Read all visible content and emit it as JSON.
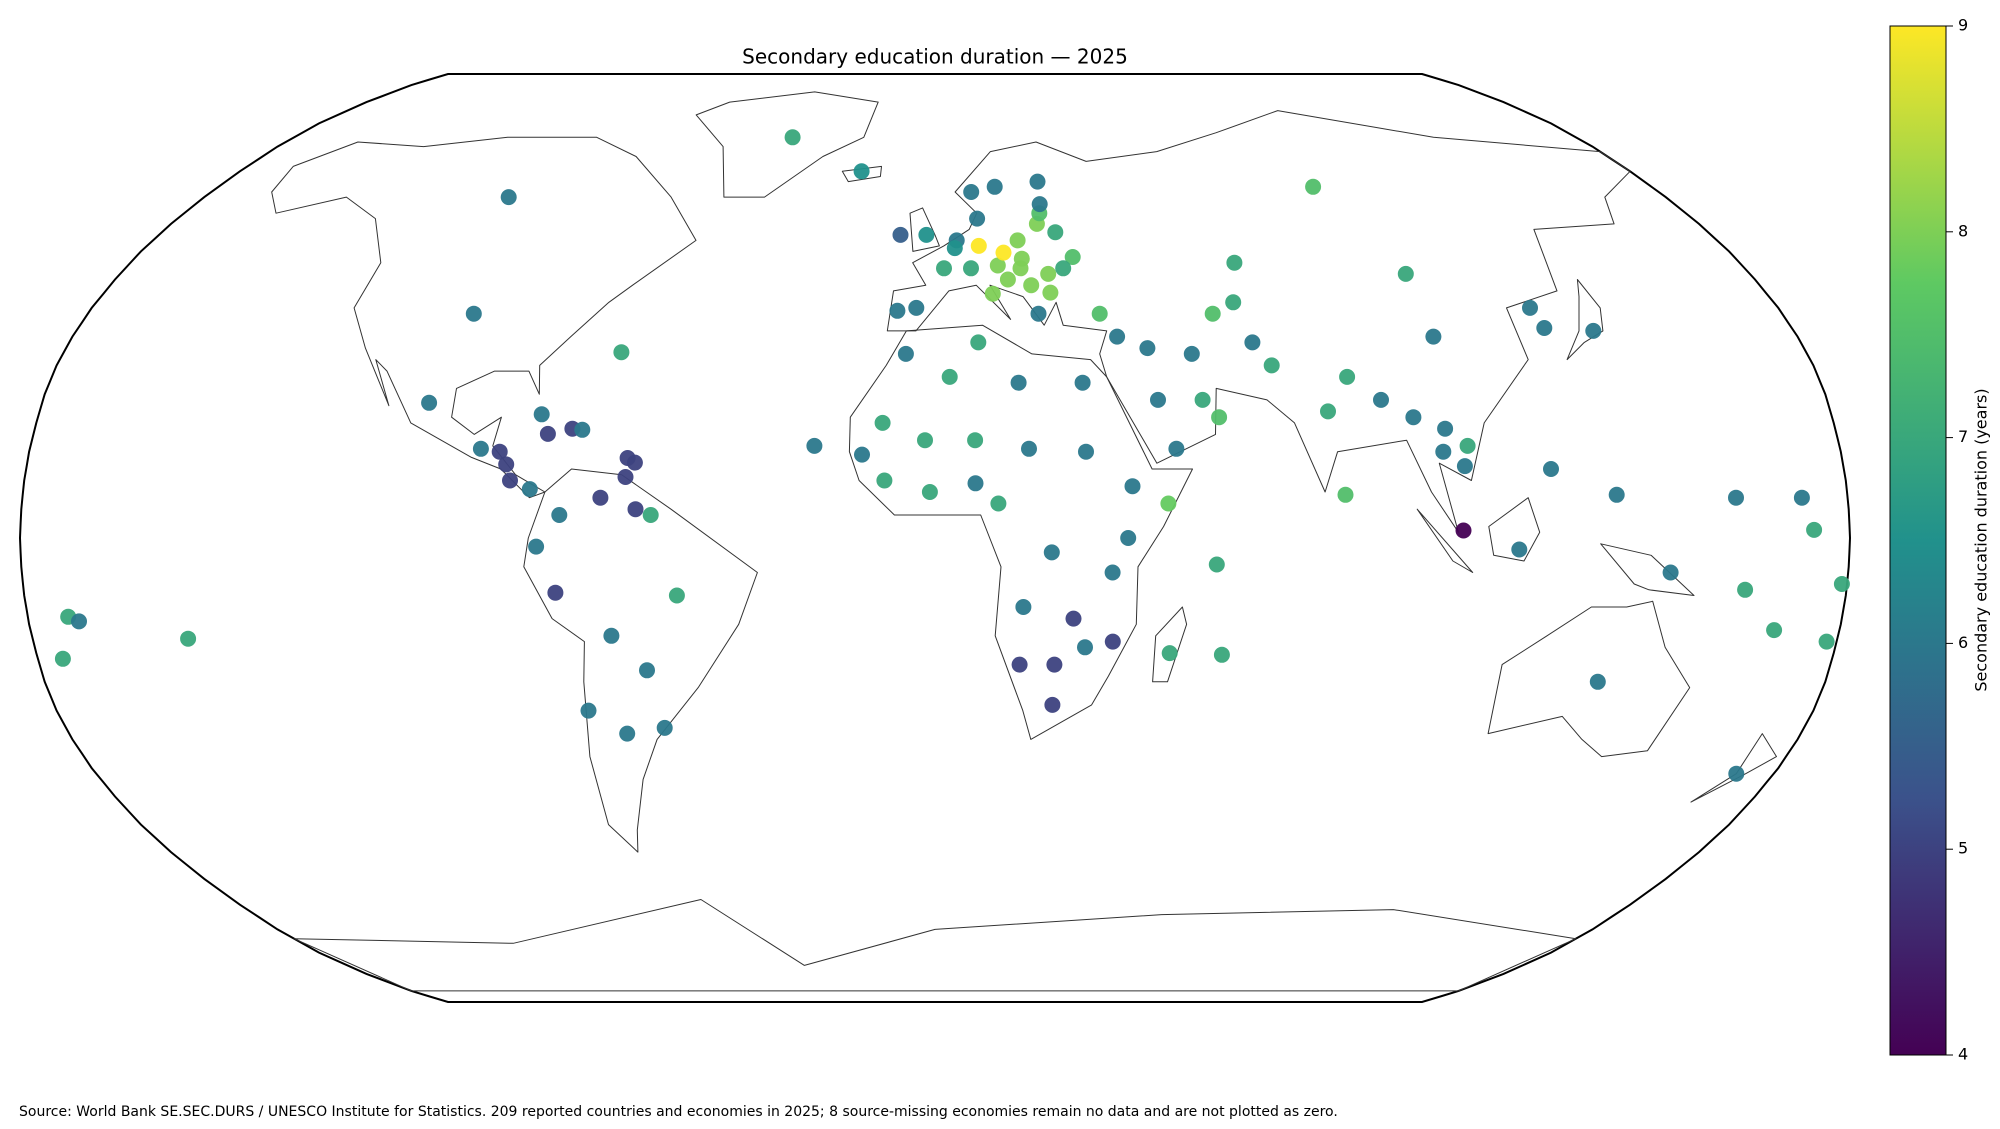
{
  "chart_data": {
    "type": "scatter",
    "projection": "robinson",
    "title": "Secondary education duration — 2025",
    "colorbar_label": "Secondary education duration (years)",
    "source": "Source: World Bank SE.SEC.DURS / UNESCO Institute for Statistics. 209 reported countries and economies in 2025; 8 source-missing economies remain no data and are not plotted as zero.",
    "colormap": "viridis",
    "clim": [
      4,
      9
    ],
    "cticks": [
      4,
      5,
      6,
      7,
      8,
      9
    ],
    "lon": [
      -8,
      -2,
      -19,
      9,
      15,
      26,
      10,
      5,
      4.5,
      10,
      19,
      24,
      25,
      25.5,
      28,
      31,
      95,
      2,
      8,
      14,
      15.5,
      19.5,
      19,
      25,
      28.5,
      12.5,
      -4,
      -8,
      22,
      25,
      21,
      16,
      35,
      67,
      104,
      104,
      138,
      128,
      127,
      64,
      59,
      66,
      53,
      44,
      38,
      69,
      79,
      84,
      90,
      96,
      101,
      106,
      105,
      102,
      122,
      104,
      115,
      81,
      45,
      48,
      57,
      54,
      30,
      17,
      3,
      -6,
      9,
      -2,
      -10.5,
      8,
      18.7,
      30,
      39,
      46,
      38,
      35,
      23,
      8,
      -1,
      -14.5,
      -10,
      12.5,
      17.5,
      27.5,
      35.5,
      30,
      17,
      24,
      24,
      47,
      57.5,
      55.5,
      -24,
      -98,
      -105,
      -64.8,
      -102,
      -79,
      -72.5,
      -70.5,
      -77.3,
      -90.3,
      -86.5,
      -85,
      -84,
      -80,
      -74,
      -66,
      -59,
      -56,
      -78.5,
      -75,
      -51,
      -64.5,
      -58,
      -71,
      -64,
      -56,
      -61.2,
      -59.5,
      -61,
      -40,
      134,
      172,
      145,
      178,
      -172,
      -175,
      -170,
      -149,
      171,
      158,
      173,
      160,
      167,
      179,
      134.5
    ],
    "lat": [
      53,
      53,
      65,
      61,
      62,
      63,
      56,
      52,
      50.6,
      51,
      52,
      55,
      57,
      58.7,
      53.5,
      49,
      62,
      47,
      47,
      47.5,
      49.8,
      48.7,
      47,
      46,
      47,
      42.5,
      40,
      39.5,
      39,
      42.7,
      44,
      45,
      39,
      48,
      46,
      35,
      36,
      36.5,
      40,
      41,
      39,
      34,
      32,
      33,
      35,
      30,
      22,
      28,
      24,
      21,
      15,
      16,
      12.5,
      19,
      12,
      1.3,
      -2,
      7.5,
      24,
      15.5,
      21,
      24,
      27,
      27,
      28,
      32,
      34,
      17,
      20,
      17,
      15.5,
      15,
      9,
      6,
      0,
      -6,
      -2.5,
      9.5,
      8,
      14.5,
      10,
      6,
      -12,
      -14,
      -18,
      -19,
      -22,
      -22,
      -29,
      -20,
      -20.3,
      -4.6,
      16,
      39,
      60,
      32.3,
      23.5,
      21.5,
      19,
      18.8,
      18.1,
      15.5,
      15,
      12.8,
      10,
      8.5,
      4,
      7,
      5,
      4,
      -1.5,
      -9.5,
      -10,
      -17,
      -23,
      -30,
      -34,
      -33,
      10.6,
      13.1,
      13.9,
      72,
      -25,
      -41,
      -6,
      -18,
      -13.7,
      -21,
      -14.5,
      -17.5,
      7,
      7,
      1.4,
      -9,
      -16,
      -8,
      7.5
    ],
    "values": [
      5.5,
      6.5,
      6.5,
      6,
      6,
      6,
      6,
      6,
      6.5,
      9,
      8,
      8,
      7.5,
      6,
      7,
      7.5,
      7.5,
      7,
      7,
      8,
      9,
      8,
      8,
      8,
      7,
      8,
      6,
      6,
      6,
      8,
      8,
      8,
      7.5,
      7,
      7,
      6,
      6,
      6,
      6,
      7,
      7.5,
      6,
      6,
      6,
      6,
      7,
      7,
      7,
      6,
      6,
      6,
      7,
      6,
      6,
      6,
      4,
      6,
      7.5,
      6,
      6,
      7.5,
      7,
      6,
      6,
      7,
      6,
      7,
      7,
      7,
      7,
      6,
      6,
      6,
      7.8,
      6,
      6,
      6,
      6,
      7,
      6,
      7,
      7,
      6,
      5,
      5,
      6,
      5,
      5,
      5,
      7,
      7,
      7,
      6,
      6,
      6,
      7,
      6,
      6,
      5,
      6,
      5,
      6,
      5,
      5,
      5,
      6,
      6,
      5,
      5,
      7,
      6,
      5,
      7,
      6,
      6,
      6,
      6,
      6,
      5,
      5,
      5,
      7,
      6,
      6,
      6,
      7,
      7,
      7,
      6,
      7,
      6,
      6,
      7,
      7,
      7,
      7,
      6
    ]
  }
}
